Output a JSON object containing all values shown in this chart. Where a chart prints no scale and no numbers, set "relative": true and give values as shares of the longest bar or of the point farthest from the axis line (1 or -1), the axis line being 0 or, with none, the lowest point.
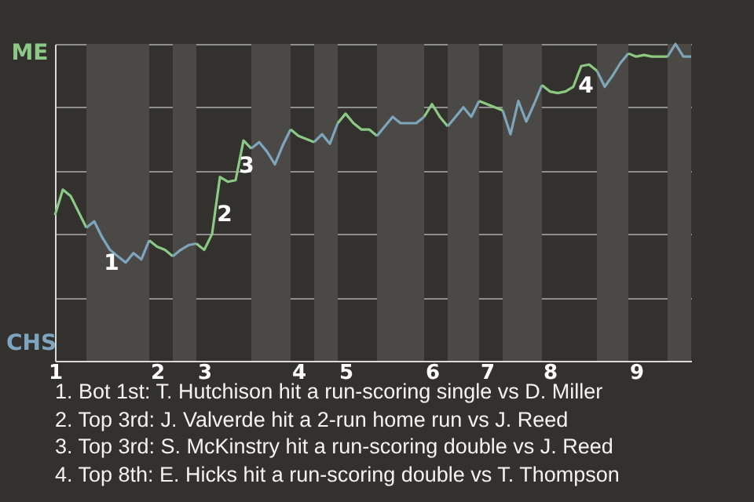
{
  "chart_data": {
    "type": "line",
    "relative": true,
    "categories": [
      "1",
      null,
      null,
      null,
      null,
      null,
      null,
      null,
      null,
      null,
      null,
      null,
      null,
      "2",
      null,
      null,
      null,
      null,
      null,
      "3",
      null,
      null,
      null,
      null,
      null,
      null,
      null,
      null,
      null,
      null,
      null,
      "4",
      null,
      null,
      null,
      null,
      null,
      "5",
      null,
      null,
      null,
      null,
      null,
      null,
      null,
      null,
      null,
      null,
      "6",
      null,
      null,
      null,
      null,
      null,
      null,
      "7",
      null,
      null,
      null,
      null,
      null,
      null,
      null,
      "8",
      null,
      null,
      null,
      null,
      null,
      null,
      null,
      null,
      null,
      null,
      "9",
      null,
      null,
      null,
      null,
      null,
      null,
      null
    ],
    "series": [
      {
        "color": "#8cc987",
        "values": [
          0.46,
          0.54,
          0.52,
          0.47,
          0.42,
          null,
          null,
          null,
          null,
          null,
          null,
          null,
          null,
          null,
          null,
          null,
          null,
          null,
          null,
          null,
          null,
          null,
          null,
          null,
          null,
          null,
          null,
          null,
          null,
          null,
          null,
          null,
          null,
          null,
          null,
          null,
          null,
          null,
          null,
          null,
          null,
          null,
          null,
          null,
          null,
          null,
          null,
          null,
          null,
          null,
          null,
          null,
          null,
          null,
          null,
          null,
          null,
          null,
          null,
          null,
          null,
          null,
          null,
          null,
          null,
          null,
          null,
          null,
          null,
          null,
          null,
          null,
          null,
          null,
          null,
          null,
          null,
          null,
          null,
          null,
          null,
          null
        ]
      },
      {
        "color": "#7ea5bf",
        "values": [
          null,
          null,
          null,
          null,
          0.42,
          0.44,
          0.39,
          0.35,
          0.33,
          0.31,
          0.34,
          0.32,
          0.38,
          null,
          null,
          null,
          null,
          null,
          null,
          null,
          null,
          null,
          null,
          null,
          null,
          null,
          null,
          null,
          null,
          null,
          null,
          null,
          null,
          null,
          null,
          null,
          null,
          null,
          null,
          null,
          null,
          null,
          null,
          null,
          null,
          null,
          null,
          null,
          null,
          null,
          null,
          null,
          null,
          null,
          null,
          null,
          null,
          null,
          null,
          null,
          null,
          null,
          null,
          null,
          null,
          null,
          null,
          null,
          null,
          null,
          null,
          null,
          null,
          null,
          null,
          null,
          null,
          null,
          null,
          null,
          null,
          null
        ]
      },
      {
        "color": "#8cc986",
        "values": [
          null,
          null,
          null,
          null,
          null,
          null,
          null,
          null,
          null,
          null,
          null,
          null,
          0.38,
          0.36,
          0.35,
          0.33,
          null,
          null,
          null,
          null,
          null,
          null,
          null,
          null,
          null,
          null,
          null,
          null,
          null,
          null,
          null,
          null,
          null,
          null,
          null,
          null,
          null,
          null,
          null,
          null,
          null,
          null,
          null,
          null,
          null,
          null,
          null,
          null,
          null,
          null,
          null,
          null,
          null,
          null,
          null,
          null,
          null,
          null,
          null,
          null,
          null,
          null,
          null,
          null,
          null,
          null,
          null,
          null,
          null,
          null,
          null,
          null,
          null,
          null,
          null,
          null,
          null,
          null,
          null,
          null,
          null,
          null
        ]
      },
      {
        "color": "#7ea5be",
        "values": [
          null,
          null,
          null,
          null,
          null,
          null,
          null,
          null,
          null,
          null,
          null,
          null,
          null,
          null,
          null,
          0.33,
          0.35,
          0.365,
          0.37,
          null,
          null,
          null,
          null,
          null,
          null,
          null,
          null,
          null,
          null,
          null,
          null,
          null,
          null,
          null,
          null,
          null,
          null,
          null,
          null,
          null,
          null,
          null,
          null,
          null,
          null,
          null,
          null,
          null,
          null,
          null,
          null,
          null,
          null,
          null,
          null,
          null,
          null,
          null,
          null,
          null,
          null,
          null,
          null,
          null,
          null,
          null,
          null,
          null,
          null,
          null,
          null,
          null,
          null,
          null,
          null,
          null,
          null,
          null,
          null,
          null,
          null,
          null
        ]
      },
      {
        "color": "#8cc985",
        "values": [
          null,
          null,
          null,
          null,
          null,
          null,
          null,
          null,
          null,
          null,
          null,
          null,
          null,
          null,
          null,
          null,
          null,
          null,
          0.37,
          0.35,
          0.4,
          0.58,
          0.565,
          0.57,
          0.695,
          0.67,
          null,
          null,
          null,
          null,
          null,
          null,
          null,
          null,
          null,
          null,
          null,
          null,
          null,
          null,
          null,
          null,
          null,
          null,
          null,
          null,
          null,
          null,
          null,
          null,
          null,
          null,
          null,
          null,
          null,
          null,
          null,
          null,
          null,
          null,
          null,
          null,
          null,
          null,
          null,
          null,
          null,
          null,
          null,
          null,
          null,
          null,
          null,
          null,
          null,
          null,
          null,
          null,
          null,
          null,
          null,
          null
        ]
      },
      {
        "color": "#7ea5bd",
        "values": [
          null,
          null,
          null,
          null,
          null,
          null,
          null,
          null,
          null,
          null,
          null,
          null,
          null,
          null,
          null,
          null,
          null,
          null,
          null,
          null,
          null,
          null,
          null,
          null,
          null,
          0.67,
          0.69,
          0.66,
          0.62,
          0.68,
          0.73,
          null,
          null,
          null,
          null,
          null,
          null,
          null,
          null,
          null,
          null,
          null,
          null,
          null,
          null,
          null,
          null,
          null,
          null,
          null,
          null,
          null,
          null,
          null,
          null,
          null,
          null,
          null,
          null,
          null,
          null,
          null,
          null,
          null,
          null,
          null,
          null,
          null,
          null,
          null,
          null,
          null,
          null,
          null,
          null,
          null,
          null,
          null,
          null,
          null,
          null,
          null
        ]
      },
      {
        "color": "#8cc984",
        "values": [
          null,
          null,
          null,
          null,
          null,
          null,
          null,
          null,
          null,
          null,
          null,
          null,
          null,
          null,
          null,
          null,
          null,
          null,
          null,
          null,
          null,
          null,
          null,
          null,
          null,
          null,
          null,
          null,
          null,
          null,
          0.73,
          0.71,
          0.7,
          0.69,
          null,
          null,
          null,
          null,
          null,
          null,
          null,
          null,
          null,
          null,
          null,
          null,
          null,
          null,
          null,
          null,
          null,
          null,
          null,
          null,
          null,
          null,
          null,
          null,
          null,
          null,
          null,
          null,
          null,
          null,
          null,
          null,
          null,
          null,
          null,
          null,
          null,
          null,
          null,
          null,
          null,
          null,
          null,
          null,
          null,
          null,
          null,
          null
        ]
      },
      {
        "color": "#7ea5bc",
        "values": [
          null,
          null,
          null,
          null,
          null,
          null,
          null,
          null,
          null,
          null,
          null,
          null,
          null,
          null,
          null,
          null,
          null,
          null,
          null,
          null,
          null,
          null,
          null,
          null,
          null,
          null,
          null,
          null,
          null,
          null,
          null,
          null,
          null,
          0.69,
          0.715,
          0.685,
          0.75,
          null,
          null,
          null,
          null,
          null,
          null,
          null,
          null,
          null,
          null,
          null,
          null,
          null,
          null,
          null,
          null,
          null,
          null,
          null,
          null,
          null,
          null,
          null,
          null,
          null,
          null,
          null,
          null,
          null,
          null,
          null,
          null,
          null,
          null,
          null,
          null,
          null,
          null,
          null,
          null,
          null,
          null,
          null,
          null,
          null
        ]
      },
      {
        "color": "#8cc983",
        "values": [
          null,
          null,
          null,
          null,
          null,
          null,
          null,
          null,
          null,
          null,
          null,
          null,
          null,
          null,
          null,
          null,
          null,
          null,
          null,
          null,
          null,
          null,
          null,
          null,
          null,
          null,
          null,
          null,
          null,
          null,
          null,
          null,
          null,
          null,
          null,
          null,
          0.75,
          0.78,
          0.75,
          0.73,
          0.73,
          0.71,
          null,
          null,
          null,
          null,
          null,
          null,
          null,
          null,
          null,
          null,
          null,
          null,
          null,
          null,
          null,
          null,
          null,
          null,
          null,
          null,
          null,
          null,
          null,
          null,
          null,
          null,
          null,
          null,
          null,
          null,
          null,
          null,
          null,
          null,
          null,
          null,
          null,
          null,
          null,
          null
        ]
      },
      {
        "color": "#7ea5bb",
        "values": [
          null,
          null,
          null,
          null,
          null,
          null,
          null,
          null,
          null,
          null,
          null,
          null,
          null,
          null,
          null,
          null,
          null,
          null,
          null,
          null,
          null,
          null,
          null,
          null,
          null,
          null,
          null,
          null,
          null,
          null,
          null,
          null,
          null,
          null,
          null,
          null,
          null,
          null,
          null,
          null,
          null,
          0.71,
          0.74,
          0.77,
          0.75,
          0.75,
          0.75,
          0.77,
          null,
          null,
          null,
          null,
          null,
          null,
          null,
          null,
          null,
          null,
          null,
          null,
          null,
          null,
          null,
          null,
          null,
          null,
          null,
          null,
          null,
          null,
          null,
          null,
          null,
          null,
          null,
          null,
          null,
          null,
          null,
          null,
          null,
          null
        ]
      },
      {
        "color": "#8cc982",
        "values": [
          null,
          null,
          null,
          null,
          null,
          null,
          null,
          null,
          null,
          null,
          null,
          null,
          null,
          null,
          null,
          null,
          null,
          null,
          null,
          null,
          null,
          null,
          null,
          null,
          null,
          null,
          null,
          null,
          null,
          null,
          null,
          null,
          null,
          null,
          null,
          null,
          null,
          null,
          null,
          null,
          null,
          null,
          null,
          null,
          null,
          null,
          null,
          0.77,
          0.81,
          0.77,
          0.74,
          null,
          null,
          null,
          null,
          null,
          null,
          null,
          null,
          null,
          null,
          null,
          null,
          null,
          null,
          null,
          null,
          null,
          null,
          null,
          null,
          null,
          null,
          null,
          null,
          null,
          null,
          null,
          null,
          null,
          null,
          null
        ]
      },
      {
        "color": "#7ea5ba",
        "values": [
          null,
          null,
          null,
          null,
          null,
          null,
          null,
          null,
          null,
          null,
          null,
          null,
          null,
          null,
          null,
          null,
          null,
          null,
          null,
          null,
          null,
          null,
          null,
          null,
          null,
          null,
          null,
          null,
          null,
          null,
          null,
          null,
          null,
          null,
          null,
          null,
          null,
          null,
          null,
          null,
          null,
          null,
          null,
          null,
          null,
          null,
          null,
          null,
          null,
          null,
          0.74,
          0.77,
          0.8,
          0.77,
          0.82,
          null,
          null,
          null,
          null,
          null,
          null,
          null,
          null,
          null,
          null,
          null,
          null,
          null,
          null,
          null,
          null,
          null,
          null,
          null,
          null,
          null,
          null,
          null,
          null,
          null,
          null,
          null
        ]
      },
      {
        "color": "#8cc981",
        "values": [
          null,
          null,
          null,
          null,
          null,
          null,
          null,
          null,
          null,
          null,
          null,
          null,
          null,
          null,
          null,
          null,
          null,
          null,
          null,
          null,
          null,
          null,
          null,
          null,
          null,
          null,
          null,
          null,
          null,
          null,
          null,
          null,
          null,
          null,
          null,
          null,
          null,
          null,
          null,
          null,
          null,
          null,
          null,
          null,
          null,
          null,
          null,
          null,
          null,
          null,
          null,
          null,
          null,
          null,
          0.82,
          0.81,
          0.8,
          0.79,
          null,
          null,
          null,
          null,
          null,
          null,
          null,
          null,
          null,
          null,
          null,
          null,
          null,
          null,
          null,
          null,
          null,
          null,
          null,
          null,
          null,
          null,
          null,
          null
        ]
      },
      {
        "color": "#7ea5b9",
        "values": [
          null,
          null,
          null,
          null,
          null,
          null,
          null,
          null,
          null,
          null,
          null,
          null,
          null,
          null,
          null,
          null,
          null,
          null,
          null,
          null,
          null,
          null,
          null,
          null,
          null,
          null,
          null,
          null,
          null,
          null,
          null,
          null,
          null,
          null,
          null,
          null,
          null,
          null,
          null,
          null,
          null,
          null,
          null,
          null,
          null,
          null,
          null,
          null,
          null,
          null,
          null,
          null,
          null,
          null,
          null,
          null,
          null,
          0.79,
          0.715,
          0.82,
          0.755,
          0.81,
          0.87,
          null,
          null,
          null,
          null,
          null,
          null,
          null,
          null,
          null,
          null,
          null,
          null,
          null,
          null,
          null,
          null,
          null,
          null,
          null
        ]
      },
      {
        "color": "#8cc980",
        "values": [
          null,
          null,
          null,
          null,
          null,
          null,
          null,
          null,
          null,
          null,
          null,
          null,
          null,
          null,
          null,
          null,
          null,
          null,
          null,
          null,
          null,
          null,
          null,
          null,
          null,
          null,
          null,
          null,
          null,
          null,
          null,
          null,
          null,
          null,
          null,
          null,
          null,
          null,
          null,
          null,
          null,
          null,
          null,
          null,
          null,
          null,
          null,
          null,
          null,
          null,
          null,
          null,
          null,
          null,
          null,
          null,
          null,
          null,
          null,
          null,
          null,
          null,
          0.87,
          0.85,
          0.845,
          0.85,
          0.865,
          0.93,
          0.935,
          0.915,
          null,
          null,
          null,
          null,
          null,
          null,
          null,
          null,
          null,
          null,
          null,
          null
        ]
      },
      {
        "color": "#7ea5b8",
        "values": [
          null,
          null,
          null,
          null,
          null,
          null,
          null,
          null,
          null,
          null,
          null,
          null,
          null,
          null,
          null,
          null,
          null,
          null,
          null,
          null,
          null,
          null,
          null,
          null,
          null,
          null,
          null,
          null,
          null,
          null,
          null,
          null,
          null,
          null,
          null,
          null,
          null,
          null,
          null,
          null,
          null,
          null,
          null,
          null,
          null,
          null,
          null,
          null,
          null,
          null,
          null,
          null,
          null,
          null,
          null,
          null,
          null,
          null,
          null,
          null,
          null,
          null,
          null,
          null,
          null,
          null,
          null,
          null,
          null,
          0.915,
          0.865,
          0.9,
          0.94,
          0.97,
          null,
          null,
          null,
          null,
          null,
          null,
          null,
          null
        ]
      },
      {
        "color": "#8cc97f",
        "values": [
          null,
          null,
          null,
          null,
          null,
          null,
          null,
          null,
          null,
          null,
          null,
          null,
          null,
          null,
          null,
          null,
          null,
          null,
          null,
          null,
          null,
          null,
          null,
          null,
          null,
          null,
          null,
          null,
          null,
          null,
          null,
          null,
          null,
          null,
          null,
          null,
          null,
          null,
          null,
          null,
          null,
          null,
          null,
          null,
          null,
          null,
          null,
          null,
          null,
          null,
          null,
          null,
          null,
          null,
          null,
          null,
          null,
          null,
          null,
          null,
          null,
          null,
          null,
          null,
          null,
          null,
          null,
          null,
          null,
          null,
          null,
          null,
          null,
          0.97,
          0.96,
          0.965,
          0.96,
          0.96,
          0.96,
          null,
          null,
          null
        ]
      },
      {
        "color": "#7ea5b7",
        "values": [
          null,
          null,
          null,
          null,
          null,
          null,
          null,
          null,
          null,
          null,
          null,
          null,
          null,
          null,
          null,
          null,
          null,
          null,
          null,
          null,
          null,
          null,
          null,
          null,
          null,
          null,
          null,
          null,
          null,
          null,
          null,
          null,
          null,
          null,
          null,
          null,
          null,
          null,
          null,
          null,
          null,
          null,
          null,
          null,
          null,
          null,
          null,
          null,
          null,
          null,
          null,
          null,
          null,
          null,
          null,
          null,
          null,
          null,
          null,
          null,
          null,
          null,
          null,
          null,
          null,
          null,
          null,
          null,
          null,
          null,
          null,
          null,
          null,
          null,
          null,
          null,
          null,
          null,
          0.96,
          1,
          0.96,
          0.96
        ]
      }
    ],
    "grid": "y",
    "annotations": [
      "ME",
      "CHS",
      "1",
      "2",
      "3",
      "4",
      "1. Bot 1st: T. Hutchison hit a run-scoring single vs D. Miller",
      "2. Top 3rd: J. Valverde hit a 2-run home run vs J. Reed",
      "3. Top 3rd: S. McKinstry hit a run-scoring double vs J. Reed",
      "4. Top 8th: E. Hicks hit a run-scoring double vs T. Thompson"
    ]
  }
}
